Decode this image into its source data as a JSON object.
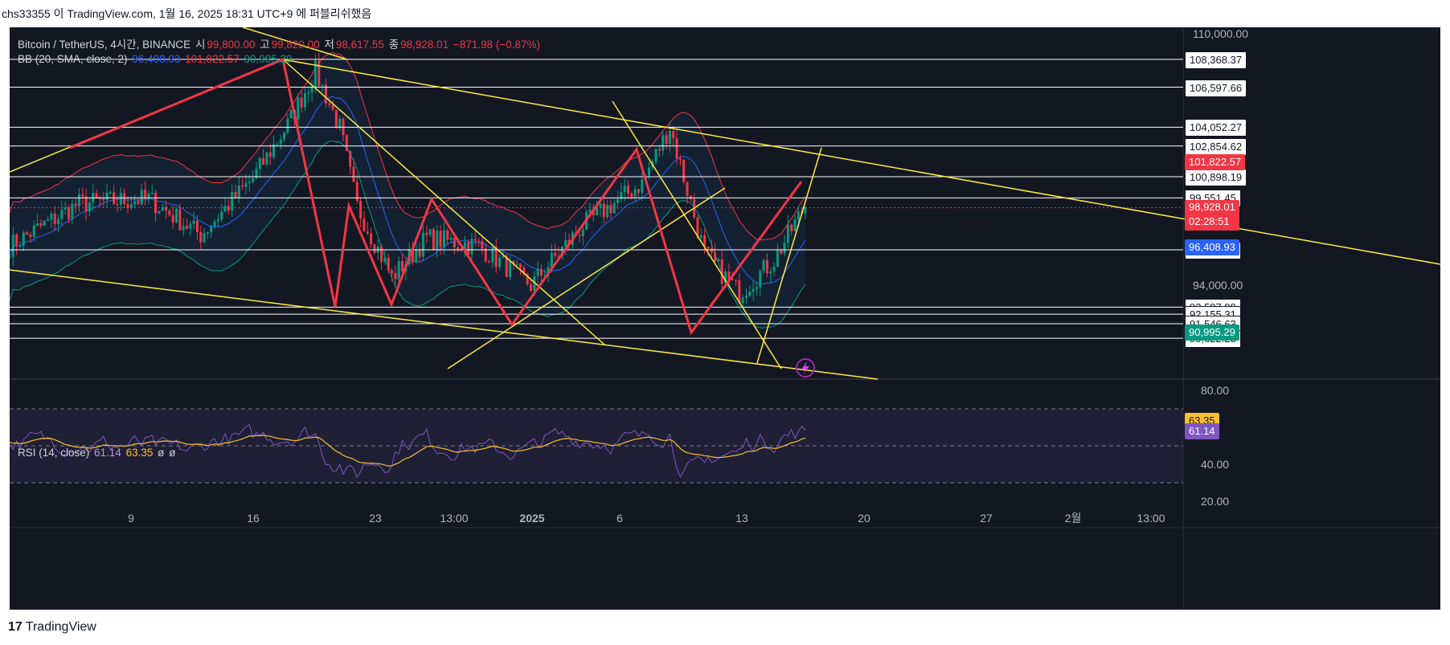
{
  "header": {
    "publish_info": "chs33355 이 TradingView.com, 1월 16, 2025 18:31 UTC+9 에 퍼블리쉬했음"
  },
  "symbol_legend": {
    "symbol": "Bitcoin / TetherUS, 4시간, BINANCE",
    "open_label": "시",
    "open": "99,800.00",
    "high_label": "고",
    "high": "99,820.00",
    "low_label": "저",
    "low": "98,617.55",
    "close_label": "종",
    "close": "98,928.01",
    "change": "−871.98 (−0.87%)"
  },
  "bb_legend": {
    "name": "BB (20, SMA, close, 2)",
    "basis": "96,408.93",
    "upper": "101,822.57",
    "lower": "90,995.29"
  },
  "rsi_legend": {
    "name": "RSI (14, close)",
    "rsi": "61.14",
    "ma": "63.35",
    "extra1": "ø",
    "extra2": "ø"
  },
  "price_axis": {
    "ticks": [
      "110,000.00",
      "94,000.00"
    ],
    "rsi_ticks": [
      "80.00",
      "40.00",
      "20.00"
    ]
  },
  "level_labels": [
    {
      "text": "108,368.37",
      "price": 108368.37
    },
    {
      "text": "106,597.66",
      "price": 106597.66
    },
    {
      "text": "104,052.27",
      "price": 104052.27
    },
    {
      "text": "102,854.62",
      "price": 102854.62
    },
    {
      "text": "100,898.19",
      "price": 100898.19
    },
    {
      "text": "99,551.45",
      "price": 99551.45
    },
    {
      "text": "96,250.08",
      "price": 96250.08
    },
    {
      "text": "92,597.99",
      "price": 92597.99
    },
    {
      "text": "92,155.31",
      "price": 92155.31
    },
    {
      "text": "91,546.63",
      "price": 91546.63
    },
    {
      "text": "90,622.23",
      "price": 90622.23
    }
  ],
  "colored_labels": {
    "bb_upper": {
      "text": "101,822.57",
      "color": "#f23645"
    },
    "last_price": {
      "text": "98,928.01",
      "countdown": "02:28:51",
      "color": "#f23645"
    },
    "bb_basis": {
      "text": "96,408.93",
      "color": "#2962ff"
    },
    "bb_lower": {
      "text": "90,995.29",
      "color": "#089981"
    },
    "rsi_ma": {
      "text": "63.35",
      "color": "#fbc02d"
    },
    "rsi_value": {
      "text": "61.14",
      "color": "#7e57c2"
    }
  },
  "time_axis": [
    "9",
    "16",
    "23",
    "13:00",
    "2025",
    "6",
    "13",
    "20",
    "27",
    "2월",
    "13:00"
  ],
  "footer": {
    "logo": "17",
    "brand": "TradingView"
  },
  "colors": {
    "background": "#131722",
    "up": "#089981",
    "down": "#f23645",
    "trendline": "#ffeb3b",
    "pattern": "#f23645",
    "bb_upper": "#f23645",
    "bb_basis": "#2962ff",
    "bb_lower": "#089981",
    "rsi_line": "#7e57c2",
    "rsi_ma": "#fbc02d"
  }
}
